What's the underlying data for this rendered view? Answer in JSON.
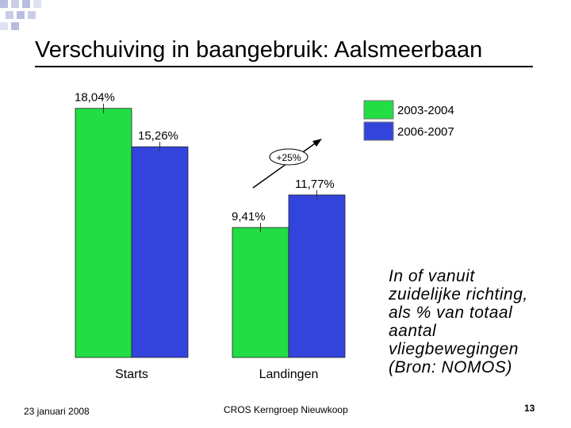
{
  "title": "Verschuiving in baangebruik: Aalsmeerbaan",
  "chart_data": {
    "type": "bar",
    "categories": [
      "Starts",
      "Landingen"
    ],
    "series": [
      {
        "name": "2003-2004",
        "color": "#22dd44",
        "values": [
          18.04,
          9.41
        ],
        "labels": [
          "18,04%",
          "9,41%"
        ]
      },
      {
        "name": "2006-2007",
        "color": "#3344dd",
        "values": [
          15.26,
          11.77
        ],
        "labels": [
          "15,26%",
          "11,77%"
        ]
      }
    ],
    "ylim": [
      0,
      19
    ],
    "annotation": "+25%",
    "legend_position": "top-right",
    "grid": false
  },
  "note_lines": [
    "In of vanuit",
    "zuidelijke richting,",
    "als % van totaal",
    "aantal",
    "vliegbewegingen",
    "(Bron: NOMOS)"
  ],
  "footer": {
    "date": "23 januari 2008",
    "center": "CROS Kerngroep Nieuwkoop",
    "page": "13"
  },
  "colors": {
    "deco": "#b7bde0",
    "bar_edge": "#222222"
  }
}
